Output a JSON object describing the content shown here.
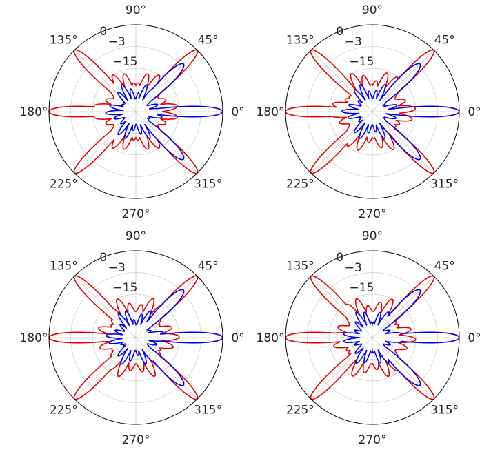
{
  "chart_data": [
    {
      "type": "line",
      "projection": "polar",
      "panel": "top-left",
      "theta_tick_labels": [
        "0°",
        "45°",
        "90°",
        "135°",
        "180°",
        "225°",
        "270°",
        "315°"
      ],
      "theta_ticks_deg": [
        0,
        45,
        90,
        135,
        180,
        225,
        270,
        315
      ],
      "r_tick_labels": [
        "0",
        "−3",
        "−15"
      ],
      "r_ticks": [
        0,
        -3,
        -15
      ],
      "rlim": [
        -40,
        0
      ],
      "grid": true,
      "series": [
        {
          "color": "#e00000",
          "main_beams_deg": [
            135,
            180,
            225,
            315,
            45
          ],
          "peak_dB": [
            0,
            0,
            0,
            0,
            0
          ]
        },
        {
          "color": "#0000ee",
          "main_beams_deg": [
            0,
            45,
            315
          ],
          "peak_dB": [
            0,
            -9,
            -9
          ]
        }
      ]
    },
    {
      "type": "line",
      "projection": "polar",
      "panel": "top-right",
      "theta_tick_labels": [
        "0°",
        "45°",
        "90°",
        "135°",
        "180°",
        "225°",
        "270°",
        "315°"
      ],
      "theta_ticks_deg": [
        0,
        45,
        90,
        135,
        180,
        225,
        270,
        315
      ],
      "r_tick_labels": [
        "0",
        "−3",
        "−15"
      ],
      "r_ticks": [
        0,
        -3,
        -15
      ],
      "rlim": [
        -40,
        0
      ],
      "grid": true,
      "series": [
        {
          "color": "#e00000",
          "main_beams_deg": [
            135,
            180,
            225,
            315,
            45
          ],
          "peak_dB": [
            0,
            0,
            0,
            0,
            0
          ]
        },
        {
          "color": "#0000ee",
          "main_beams_deg": [
            0,
            45,
            315
          ],
          "peak_dB": [
            0,
            -9,
            -9
          ]
        }
      ]
    },
    {
      "type": "line",
      "projection": "polar",
      "panel": "bottom-left",
      "theta_tick_labels": [
        "0°",
        "45°",
        "90°",
        "135°",
        "180°",
        "225°",
        "270°",
        "315°"
      ],
      "theta_ticks_deg": [
        0,
        45,
        90,
        135,
        180,
        225,
        270,
        315
      ],
      "r_tick_labels": [
        "0",
        "−3",
        "−15"
      ],
      "r_ticks": [
        0,
        -3,
        -15
      ],
      "rlim": [
        -40,
        0
      ],
      "grid": true,
      "series": [
        {
          "color": "#e00000",
          "main_beams_deg": [
            135,
            180,
            225,
            315,
            45
          ],
          "peak_dB": [
            0,
            0,
            0,
            0,
            0
          ]
        },
        {
          "color": "#0000ee",
          "main_beams_deg": [
            0,
            45,
            315
          ],
          "peak_dB": [
            0,
            -9,
            -9
          ]
        }
      ]
    },
    {
      "type": "line",
      "projection": "polar",
      "panel": "bottom-right",
      "theta_tick_labels": [
        "0°",
        "45°",
        "90°",
        "135°",
        "180°",
        "225°",
        "270°",
        "315°"
      ],
      "theta_ticks_deg": [
        0,
        45,
        90,
        135,
        180,
        225,
        270,
        315
      ],
      "r_tick_labels": [
        "0",
        "−3",
        "−15"
      ],
      "r_ticks": [
        0,
        -3,
        -15
      ],
      "rlim": [
        -40,
        0
      ],
      "grid": true,
      "series": [
        {
          "color": "#e00000",
          "main_beams_deg": [
            135,
            180,
            225,
            315,
            45
          ],
          "peak_dB": [
            0,
            0,
            0,
            0,
            0
          ]
        },
        {
          "color": "#0000ee",
          "main_beams_deg": [
            0,
            45,
            315
          ],
          "peak_dB": [
            0,
            -9,
            -9
          ]
        }
      ]
    }
  ]
}
